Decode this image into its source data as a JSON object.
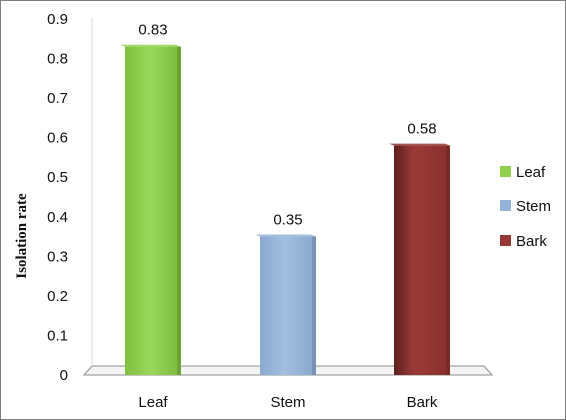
{
  "chart_data": {
    "type": "bar",
    "categories": [
      "Leaf",
      "Stem",
      "Bark"
    ],
    "values": [
      0.83,
      0.35,
      0.58
    ],
    "data_labels": [
      "0.83",
      "0.35",
      "0.58"
    ],
    "ylabel": "Isolation rate",
    "ylim": [
      0,
      0.9
    ],
    "yticks": [
      "0",
      "0.1",
      "0.2",
      "0.3",
      "0.4",
      "0.5",
      "0.6",
      "0.7",
      "0.8",
      "0.9"
    ],
    "y_tick_values": [
      0,
      0.1,
      0.2,
      0.3,
      0.4,
      0.5,
      0.6,
      0.7,
      0.8,
      0.9
    ],
    "grid": false,
    "legend_position": "right",
    "legend": [
      {
        "name": "Leaf",
        "color": "#92d050"
      },
      {
        "name": "Stem",
        "color": "#95b3d7"
      },
      {
        "name": "Bark",
        "color": "#953735"
      }
    ],
    "colors": [
      "#92d050",
      "#95b3d7",
      "#953735"
    ]
  }
}
